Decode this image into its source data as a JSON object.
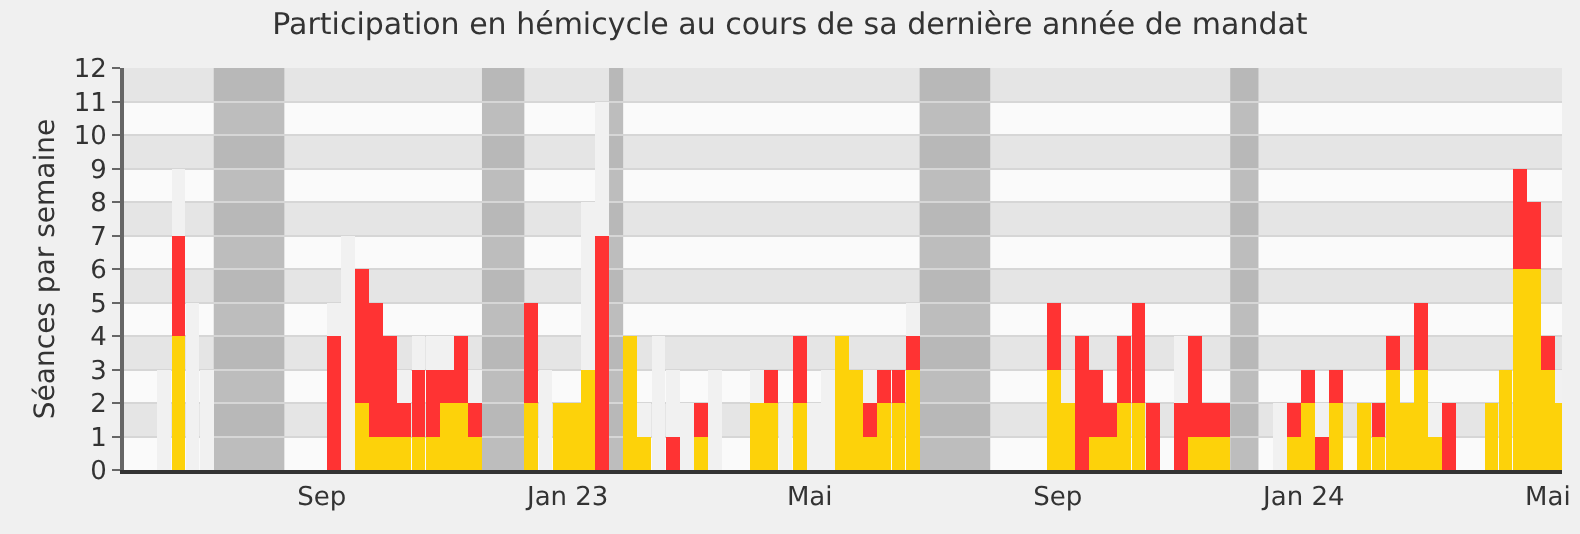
{
  "chart_data": {
    "type": "bar",
    "title": "Participation en hémicycle au cours de sa dernière année de mandat",
    "ylabel": "Séances par semaine",
    "stacked": true,
    "grid": "y",
    "x": [
      "2022-06-15",
      "2022-06-22",
      "2022-06-29",
      "2022-07-06",
      "2022-07-13",
      "2022-07-20",
      "2022-07-27",
      "2022-08-03",
      "2022-08-10",
      "2022-08-17",
      "2022-08-24",
      "2022-08-31",
      "2022-09-07",
      "2022-09-14",
      "2022-09-21",
      "2022-09-28",
      "2022-10-05",
      "2022-10-12",
      "2022-10-19",
      "2022-10-26",
      "2022-11-02",
      "2022-11-09",
      "2022-11-16",
      "2022-11-23",
      "2022-11-30",
      "2022-12-07",
      "2022-12-14",
      "2022-12-21",
      "2022-12-28",
      "2023-01-04",
      "2023-01-11",
      "2023-01-18",
      "2023-01-25",
      "2023-02-01",
      "2023-02-08",
      "2023-02-15",
      "2023-02-22",
      "2023-03-01",
      "2023-03-08",
      "2023-03-15",
      "2023-03-22",
      "2023-03-29",
      "2023-04-05",
      "2023-04-12",
      "2023-04-19",
      "2023-04-26",
      "2023-05-03",
      "2023-05-10",
      "2023-05-17",
      "2023-05-24",
      "2023-05-31",
      "2023-06-07",
      "2023-06-14",
      "2023-06-21",
      "2023-06-28",
      "2023-07-05",
      "2023-07-12",
      "2023-07-19",
      "2023-07-26",
      "2023-08-02",
      "2023-08-09",
      "2023-08-16",
      "2023-08-23",
      "2023-08-30",
      "2023-09-06",
      "2023-09-13",
      "2023-09-20",
      "2023-09-27",
      "2023-10-04",
      "2023-10-11",
      "2023-10-18",
      "2023-10-25",
      "2023-11-01",
      "2023-11-08",
      "2023-11-15",
      "2023-11-22",
      "2023-11-29",
      "2023-12-06",
      "2023-12-13",
      "2023-12-20",
      "2023-12-27",
      "2024-01-03",
      "2024-01-10",
      "2024-01-17",
      "2024-01-24",
      "2024-01-31",
      "2024-02-07",
      "2024-02-14",
      "2024-02-21",
      "2024-02-28",
      "2024-03-06",
      "2024-03-13",
      "2024-03-20",
      "2024-03-27",
      "2024-04-03",
      "2024-04-10",
      "2024-04-17",
      "2024-04-24",
      "2024-05-01",
      "2024-05-08"
    ],
    "series": [
      {
        "color": "#fdd20a",
        "values": [
          0,
          4,
          0,
          0,
          null,
          null,
          null,
          null,
          null,
          null,
          null,
          null,
          0,
          0,
          2,
          1,
          1,
          1,
          1,
          1,
          2,
          2,
          1,
          null,
          null,
          null,
          2,
          0,
          2,
          2,
          3,
          0,
          null,
          4,
          1,
          0,
          0,
          0,
          1,
          0,
          null,
          null,
          2,
          2,
          0,
          2,
          0,
          0,
          4,
          3,
          1,
          2,
          2,
          3,
          null,
          null,
          null,
          null,
          null,
          null,
          null,
          null,
          null,
          3,
          2,
          0,
          1,
          1,
          2,
          2,
          0,
          null,
          0,
          1,
          1,
          1,
          null,
          null,
          null,
          0,
          1,
          2,
          0,
          2,
          null,
          2,
          1,
          3,
          2,
          3,
          1,
          0,
          null,
          null,
          2,
          3,
          6,
          6,
          3,
          2
        ]
      },
      {
        "color": "#ff3333",
        "values": [
          0,
          3,
          0,
          0,
          null,
          null,
          null,
          null,
          null,
          null,
          null,
          null,
          4,
          0,
          4,
          4,
          3,
          1,
          2,
          2,
          1,
          2,
          1,
          null,
          null,
          null,
          3,
          0,
          0,
          0,
          0,
          7,
          null,
          0,
          0,
          0,
          1,
          0,
          1,
          0,
          null,
          null,
          0,
          1,
          0,
          2,
          0,
          0,
          0,
          0,
          1,
          1,
          1,
          1,
          null,
          null,
          null,
          null,
          null,
          null,
          null,
          null,
          null,
          2,
          0,
          4,
          2,
          1,
          2,
          3,
          2,
          null,
          2,
          3,
          1,
          1,
          null,
          null,
          null,
          0,
          1,
          1,
          1,
          1,
          null,
          0,
          1,
          1,
          0,
          2,
          0,
          2,
          null,
          null,
          0,
          0,
          3,
          2,
          1,
          0
        ]
      },
      {
        "color": "#f1f1f1",
        "values": [
          3,
          2,
          5,
          3,
          null,
          null,
          null,
          null,
          null,
          null,
          null,
          null,
          1,
          7,
          0,
          0,
          0,
          1,
          1,
          1,
          1,
          0,
          1,
          null,
          null,
          null,
          0,
          3,
          0,
          0,
          5,
          4,
          null,
          0,
          1,
          4,
          2,
          2,
          0,
          3,
          null,
          null,
          1,
          0,
          2,
          0,
          2,
          3,
          0,
          0,
          1,
          0,
          0,
          1,
          null,
          null,
          null,
          null,
          null,
          null,
          null,
          null,
          null,
          0,
          1,
          0,
          0,
          0,
          0,
          0,
          0,
          null,
          2,
          0,
          0,
          0,
          null,
          null,
          null,
          2,
          0,
          0,
          1,
          0,
          null,
          0,
          0,
          0,
          0,
          0,
          1,
          0,
          null,
          null,
          0,
          0,
          0,
          0,
          0,
          1
        ]
      }
    ],
    "xlim": [
      "2022-05-26",
      "2024-05-08"
    ],
    "xticks": [
      {
        "value": "2022-09-01",
        "label": "Sep"
      },
      {
        "value": "2023-01-01",
        "label": "Jan 23"
      },
      {
        "value": "2023-05-01",
        "label": "Mai"
      },
      {
        "value": "2023-09-01",
        "label": "Sep"
      },
      {
        "value": "2024-01-01",
        "label": "Jan 24"
      },
      {
        "value": "2024-05-01",
        "label": "Mai"
      }
    ],
    "ylim": [
      0,
      12
    ],
    "yticks": [
      0,
      1,
      2,
      3,
      4,
      5,
      6,
      7,
      8,
      9,
      10,
      11,
      12
    ],
    "bands": [
      {
        "axis": "x",
        "from": "2022-07-09T12:00",
        "to": "2022-08-13T12:00",
        "color": "#a8a8a8"
      },
      {
        "axis": "x",
        "from": "2022-11-19T12:00",
        "to": "2022-12-10T12:00",
        "color": "#a8a8a8"
      },
      {
        "axis": "x",
        "from": "2023-01-21T12:00",
        "to": "2023-01-28T12:00",
        "color": "#a8a8a8"
      },
      {
        "axis": "x",
        "from": "2023-06-24T12:00",
        "to": "2023-07-29T12:00",
        "color": "#a8a8a8"
      },
      {
        "axis": "x",
        "from": "2023-11-25T12:00",
        "to": "2023-12-09T12:00",
        "color": "#a8a8a8"
      }
    ]
  }
}
